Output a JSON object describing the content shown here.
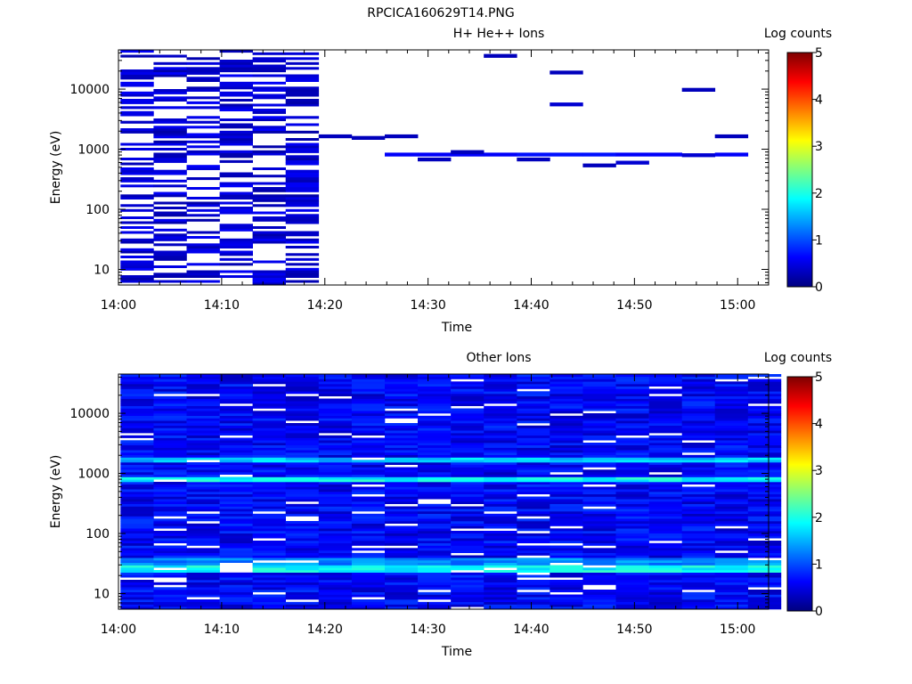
{
  "figure_title": "RPCICA160629T14.PNG",
  "colors": {
    "colormap": [
      "#00007f",
      "#0000ff",
      "#007fff",
      "#00ffff",
      "#7fff7f",
      "#ffff00",
      "#ff7f00",
      "#ff0000",
      "#7f0000"
    ],
    "empty_bin": "#ffffff",
    "axis": "#000000"
  },
  "chart_data": [
    {
      "type": "heatmap",
      "title": "H+ He++ Ions",
      "xlabel": "Time",
      "ylabel": "Energy (eV)",
      "x_ticks": [
        "14:00",
        "14:10",
        "14:20",
        "14:30",
        "14:40",
        "14:50",
        "15:00"
      ],
      "y_ticks": [
        "10",
        "100",
        "1000",
        "10000"
      ],
      "y_scale": "log",
      "ylim": [
        5.5,
        45000
      ],
      "xlim_minutes": [
        0,
        63
      ],
      "colorbar": {
        "label": "Log counts",
        "range": [
          0,
          5
        ],
        "ticks": [
          "0",
          "1",
          "2",
          "3",
          "4",
          "5"
        ]
      },
      "time_bins_minutes": [
        0.2,
        3.4,
        6.6,
        9.8,
        13.0,
        16.2,
        19.4,
        22.6,
        25.8,
        29.0,
        32.2,
        35.4,
        38.6,
        41.8,
        45.0,
        48.2,
        51.4,
        54.6,
        57.8,
        61.0
      ],
      "dense_bins_active": 6,
      "dense_bins_zero_fraction": 0.45,
      "dense_level_range": [
        0.2,
        0.6
      ],
      "sparse_bins": [
        {
          "bin": 6,
          "energy_ev": 1650,
          "level": 0.3
        },
        {
          "bin": 7,
          "energy_ev": 1550,
          "level": 0.3
        },
        {
          "bin": 8,
          "energy_ev": 1650,
          "level": 0.3
        },
        {
          "bin": 8,
          "energy_ev": 820,
          "level": 0.6
        },
        {
          "bin": 9,
          "energy_ev": 820,
          "level": 0.6
        },
        {
          "bin": 9,
          "energy_ev": 680,
          "level": 0.3
        },
        {
          "bin": 10,
          "energy_ev": 820,
          "level": 0.6
        },
        {
          "bin": 10,
          "energy_ev": 900,
          "level": 0.3
        },
        {
          "bin": 11,
          "energy_ev": 820,
          "level": 0.6
        },
        {
          "bin": 11,
          "energy_ev": 36000,
          "level": 0.3
        },
        {
          "bin": 12,
          "energy_ev": 820,
          "level": 0.7
        },
        {
          "bin": 12,
          "energy_ev": 680,
          "level": 0.3
        },
        {
          "bin": 13,
          "energy_ev": 820,
          "level": 0.7
        },
        {
          "bin": 13,
          "energy_ev": 19000,
          "level": 0.3
        },
        {
          "bin": 13,
          "energy_ev": 5600,
          "level": 0.4
        },
        {
          "bin": 14,
          "energy_ev": 820,
          "level": 0.7
        },
        {
          "bin": 14,
          "energy_ev": 540,
          "level": 0.3
        },
        {
          "bin": 15,
          "energy_ev": 820,
          "level": 0.6
        },
        {
          "bin": 15,
          "energy_ev": 600,
          "level": 0.4
        },
        {
          "bin": 16,
          "energy_ev": 820,
          "level": 0.6
        },
        {
          "bin": 17,
          "energy_ev": 800,
          "level": 0.4
        },
        {
          "bin": 17,
          "energy_ev": 9800,
          "level": 0.3
        },
        {
          "bin": 18,
          "energy_ev": 820,
          "level": 0.6
        },
        {
          "bin": 18,
          "energy_ev": 1650,
          "level": 0.3
        }
      ]
    },
    {
      "type": "heatmap",
      "title": "Other Ions",
      "xlabel": "Time",
      "ylabel": "Energy (eV)",
      "x_ticks": [
        "14:00",
        "14:10",
        "14:20",
        "14:30",
        "14:40",
        "14:50",
        "15:00"
      ],
      "y_ticks": [
        "10",
        "100",
        "1000",
        "10000"
      ],
      "y_scale": "log",
      "ylim": [
        5.5,
        45000
      ],
      "xlim_minutes": [
        0,
        63
      ],
      "colorbar": {
        "label": "Log counts",
        "range": [
          0,
          5
        ],
        "ticks": [
          "0",
          "1",
          "2",
          "3",
          "4",
          "5"
        ]
      },
      "time_bins_minutes": [
        0.2,
        3.4,
        6.6,
        9.8,
        13.0,
        16.2,
        19.4,
        22.6,
        25.8,
        29.0,
        32.2,
        35.4,
        38.6,
        41.8,
        45.0,
        48.2,
        51.4,
        54.6,
        57.8,
        61.0
      ],
      "background_level": [
        0.3,
        0.9
      ],
      "zero_fraction": 0.06,
      "enhanced_bands": [
        {
          "energy_range_ev": [
            1550,
            1850
          ],
          "level": 1.6
        },
        {
          "energy_range_ev": [
            720,
            900
          ],
          "level": 1.9
        },
        {
          "energy_range_ev": [
            30,
            40
          ],
          "level": 1.3
        },
        {
          "energy_range_ev": [
            22,
            30
          ],
          "level": 1.9
        }
      ]
    }
  ]
}
